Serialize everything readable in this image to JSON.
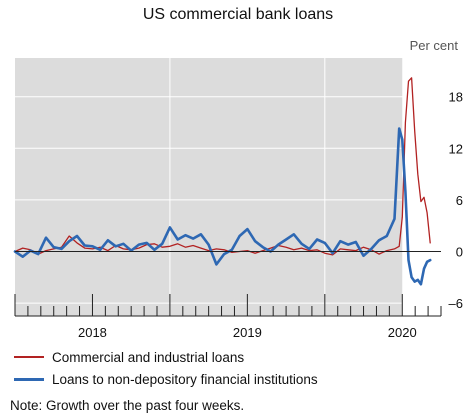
{
  "chart_data": {
    "type": "line",
    "title": "US commercial bank loans",
    "unit": "Per cent",
    "xlim": [
      2017.5,
      2020.25
    ],
    "ylim": [
      -7.5,
      22.5
    ],
    "yticks": [
      18,
      12,
      6,
      0,
      -6
    ],
    "ytick_labels": [
      "18",
      "12",
      "6",
      "0",
      "–6"
    ],
    "xtick_labels": [
      {
        "x": 2018.0,
        "label": "2018"
      },
      {
        "x": 2019.0,
        "label": "2019"
      },
      {
        "x": 2020.0,
        "label": "2020"
      }
    ],
    "shaded_range": [
      2017.5,
      2020.0
    ],
    "grid": true,
    "series": [
      {
        "name": "Commercial and industrial loans",
        "color": "#b22222",
        "x": [
          2017.5,
          2017.55,
          2017.6,
          2017.65,
          2017.7,
          2017.75,
          2017.8,
          2017.85,
          2017.9,
          2017.95,
          2018.0,
          2018.05,
          2018.1,
          2018.15,
          2018.2,
          2018.25,
          2018.3,
          2018.35,
          2018.4,
          2018.45,
          2018.5,
          2018.55,
          2018.6,
          2018.65,
          2018.7,
          2018.75,
          2018.8,
          2018.85,
          2018.9,
          2018.95,
          2019.0,
          2019.05,
          2019.1,
          2019.15,
          2019.2,
          2019.25,
          2019.3,
          2019.35,
          2019.4,
          2019.45,
          2019.5,
          2019.55,
          2019.6,
          2019.65,
          2019.7,
          2019.75,
          2019.8,
          2019.85,
          2019.9,
          2019.95,
          2019.98,
          2020.0,
          2020.02,
          2020.04,
          2020.06,
          2020.08,
          2020.1,
          2020.12,
          2020.14,
          2020.16,
          2020.18
        ],
        "values": [
          0,
          0.4,
          0.2,
          -0.3,
          0.1,
          0.3,
          0.5,
          1.8,
          1.0,
          0.4,
          0.3,
          0.5,
          0.1,
          0.7,
          0.3,
          0.2,
          0.4,
          0.8,
          0.9,
          0.5,
          0.6,
          0.9,
          0.5,
          0.7,
          0.4,
          0.1,
          0.3,
          0.2,
          -0.1,
          0.0,
          0.1,
          -0.2,
          0.1,
          0.4,
          0.7,
          0.5,
          0.2,
          0.4,
          0.1,
          0.2,
          -0.2,
          -0.4,
          0.3,
          0.2,
          0.1,
          0.5,
          0.2,
          -0.3,
          0.1,
          0.3,
          0.6,
          4.0,
          15.0,
          19.8,
          20.2,
          14.0,
          9.0,
          5.8,
          6.3,
          4.5,
          1.0
        ]
      },
      {
        "name": "Loans to non-depository financial institutions",
        "color": "#2e68b3",
        "x": [
          2017.5,
          2017.55,
          2017.6,
          2017.65,
          2017.7,
          2017.75,
          2017.8,
          2017.85,
          2017.9,
          2017.95,
          2018.0,
          2018.05,
          2018.1,
          2018.15,
          2018.2,
          2018.25,
          2018.3,
          2018.35,
          2018.4,
          2018.45,
          2018.5,
          2018.55,
          2018.6,
          2018.65,
          2018.7,
          2018.75,
          2018.8,
          2018.85,
          2018.9,
          2018.95,
          2019.0,
          2019.05,
          2019.1,
          2019.15,
          2019.2,
          2019.25,
          2019.3,
          2019.35,
          2019.4,
          2019.45,
          2019.5,
          2019.55,
          2019.6,
          2019.65,
          2019.7,
          2019.75,
          2019.8,
          2019.85,
          2019.9,
          2019.95,
          2019.98,
          2020.0,
          2020.02,
          2020.04,
          2020.06,
          2020.08,
          2020.1,
          2020.12,
          2020.14,
          2020.16,
          2020.18
        ],
        "values": [
          0,
          -0.6,
          0.1,
          -0.3,
          1.6,
          0.5,
          0.3,
          1.2,
          1.8,
          0.7,
          0.6,
          0.2,
          1.3,
          0.6,
          0.9,
          0.1,
          0.8,
          1.0,
          0.2,
          0.9,
          2.8,
          1.4,
          1.9,
          1.5,
          2.0,
          0.8,
          -1.5,
          -0.3,
          0.2,
          1.8,
          2.6,
          1.2,
          0.5,
          0.0,
          0.8,
          1.4,
          2.0,
          0.9,
          0.3,
          1.4,
          1.0,
          -0.2,
          1.2,
          0.8,
          1.1,
          -0.5,
          0.3,
          1.3,
          1.8,
          3.8,
          14.3,
          13.0,
          7.0,
          -1.0,
          -3.0,
          -3.5,
          -3.3,
          -3.8,
          -2.0,
          -1.2,
          -1.0
        ]
      }
    ]
  },
  "legend": {
    "item1": "Commercial and industrial loans",
    "item2": "Loans to non-depository financial institutions"
  },
  "note": "Note: Growth over the past four weeks."
}
